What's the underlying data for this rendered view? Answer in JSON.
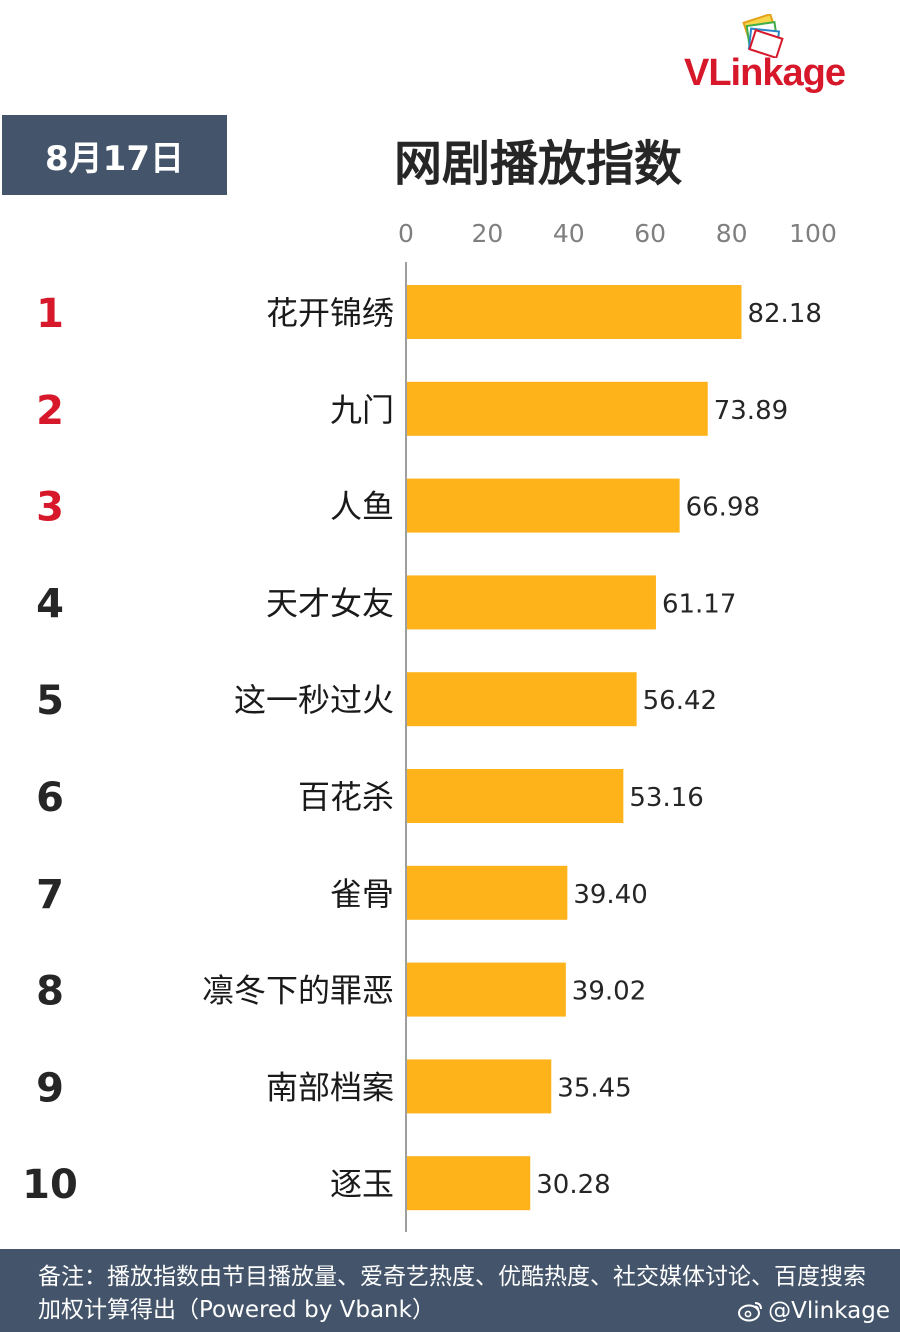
{
  "header": {
    "date": "8月17日",
    "title": "网剧播放指数",
    "logo_text_main": "VLink",
    "logo_text_tail": "age"
  },
  "colors": {
    "bar": "#ffb31a",
    "date_box": "#44546a",
    "rank_top3": "#d7182a",
    "rank_rest": "#262626",
    "axis": "#9e9e9e"
  },
  "chart_data": {
    "type": "bar",
    "orientation": "horizontal",
    "title": "网剧播放指数",
    "xlim": [
      0,
      100
    ],
    "x_ticks": [
      "0",
      "20",
      "40",
      "60",
      "80",
      "100"
    ],
    "ranks": [
      "1",
      "2",
      "3",
      "4",
      "5",
      "6",
      "7",
      "8",
      "9",
      "10"
    ],
    "categories": [
      "花开锦绣",
      "九门",
      "人鱼",
      "天才女友",
      "这一秒过火",
      "百花杀",
      "雀骨",
      "凛冬下的罪恶",
      "南部档案",
      "逐玉"
    ],
    "values": [
      82.18,
      73.89,
      66.98,
      61.17,
      56.42,
      53.16,
      39.4,
      39.02,
      35.45,
      30.28
    ],
    "value_labels": [
      "82.18",
      "73.89",
      "66.98",
      "61.17",
      "56.42",
      "53.16",
      "39.40",
      "39.02",
      "35.45",
      "30.28"
    ],
    "grid": false,
    "legend": "none"
  },
  "footer": {
    "note": "备注：播放指数由节目播放量、爱奇艺热度、优酷热度、社交媒体讨论、百度搜索加权计算得出（Powered by Vbank）",
    "weibo_handle": "@Vlinkage"
  }
}
